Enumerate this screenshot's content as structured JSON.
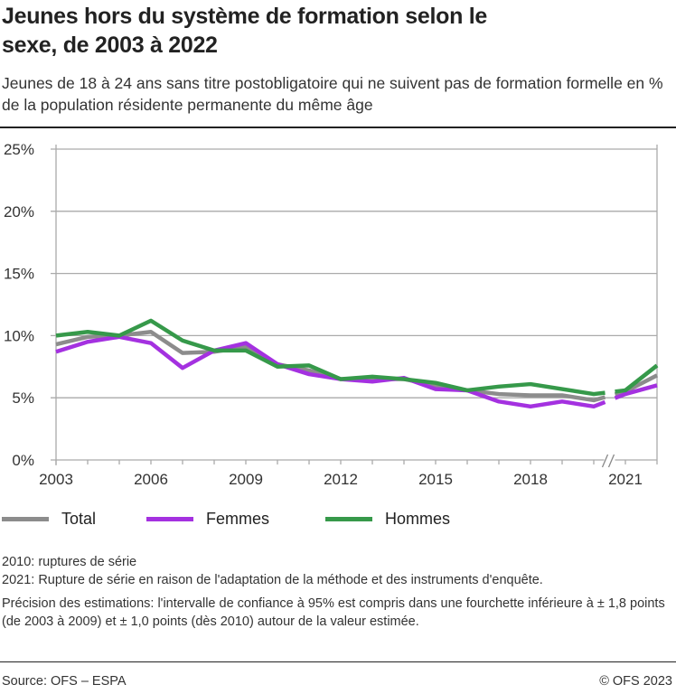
{
  "title": "Jeunes hors du système de formation selon le sexe, de 2003 à 2022",
  "subtitle": "Jeunes de 18 à 24 ans sans titre postobligatoire qui ne suivent pas de formation formelle en % de la population résidente permanente du même âge",
  "chart_data": {
    "type": "line",
    "x": [
      2003,
      2004,
      2005,
      2006,
      2007,
      2008,
      2009,
      2010,
      2011,
      2012,
      2013,
      2014,
      2015,
      2016,
      2017,
      2018,
      2019,
      2020,
      2021,
      2022
    ],
    "series": [
      {
        "name": "Total",
        "color": "#8c8c8c",
        "values": [
          9.3,
          9.9,
          10.0,
          10.3,
          8.6,
          8.7,
          9.1,
          7.7,
          7.2,
          6.5,
          6.5,
          6.5,
          6.0,
          5.6,
          5.3,
          5.2,
          5.2,
          4.8,
          5.5,
          6.8
        ]
      },
      {
        "name": "Femmes",
        "color": "#a431e0",
        "values": [
          8.7,
          9.5,
          9.9,
          9.4,
          7.4,
          8.8,
          9.4,
          7.7,
          6.9,
          6.5,
          6.3,
          6.6,
          5.7,
          5.6,
          4.7,
          4.3,
          4.7,
          4.3,
          5.3,
          6.0
        ]
      },
      {
        "name": "Hommes",
        "color": "#36994a",
        "values": [
          10.0,
          10.3,
          10.0,
          11.2,
          9.6,
          8.8,
          8.8,
          7.5,
          7.6,
          6.5,
          6.7,
          6.5,
          6.2,
          5.6,
          5.9,
          6.1,
          5.7,
          5.3,
          5.6,
          7.6
        ]
      }
    ],
    "series_break": "between 2020 and 2021",
    "ylim": [
      0,
      25
    ],
    "yticks": [
      "0%",
      "5%",
      "10%",
      "15%",
      "20%",
      "25%"
    ],
    "xticks": [
      "2003",
      "2006",
      "2009",
      "2012",
      "2015",
      "2018",
      "2021"
    ],
    "grid": "horizontal",
    "legend": "bottom"
  },
  "notes": [
    "2010: ruptures de série",
    "2021: Rupture de série en raison de l'adaptation de la méthode et des instruments d'enquête.",
    "Précision des estimations: l'intervalle de confiance à 95% est compris dans une fourchette inférieure à ± 1,8 points (de 2003 à 2009) et ± 1,0 points (dès 2010) autour de la valeur estimée."
  ],
  "footer": {
    "source": "Source: OFS – ESPA",
    "copyright": "© OFS 2023"
  }
}
